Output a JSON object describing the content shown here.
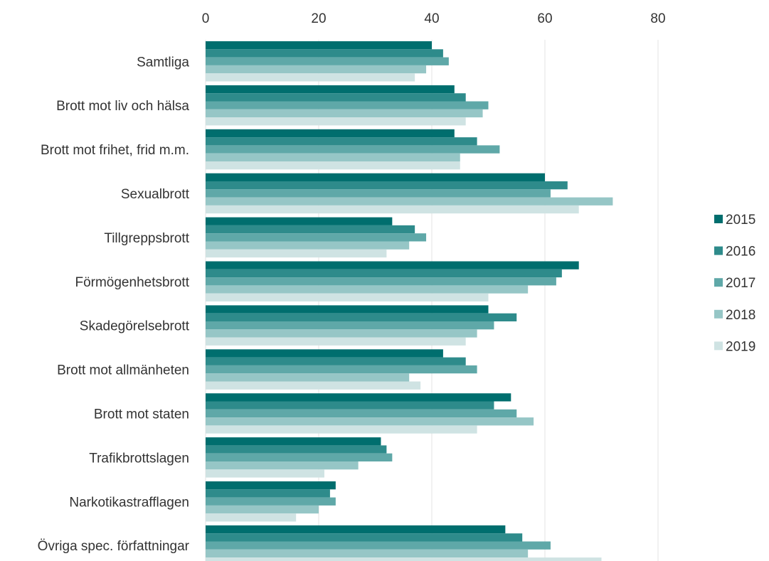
{
  "chart_data": {
    "type": "bar",
    "orientation": "horizontal",
    "categories": [
      "Samtliga",
      "Brott mot liv och hälsa",
      "Brott mot frihet, frid m.m.",
      "Sexualbrott",
      "Tillgreppsbrott",
      "Förmögenhetsbrott",
      "Skadegörelsebrott",
      "Brott mot allmänheten",
      "Brott mot staten",
      "Trafikbrottslagen",
      "Narkotikastrafflagen",
      "Övriga spec. författningar"
    ],
    "series": [
      {
        "name": "2015",
        "color": "#006e6e",
        "values": [
          40,
          44,
          44,
          60,
          33,
          66,
          50,
          42,
          54,
          31,
          23,
          53
        ]
      },
      {
        "name": "2016",
        "color": "#2e8b8b",
        "values": [
          42,
          46,
          48,
          64,
          37,
          63,
          55,
          46,
          51,
          32,
          22,
          56
        ]
      },
      {
        "name": "2017",
        "color": "#5fa8a8",
        "values": [
          43,
          50,
          52,
          61,
          39,
          62,
          51,
          48,
          55,
          33,
          23,
          61
        ]
      },
      {
        "name": "2018",
        "color": "#96c6c6",
        "values": [
          39,
          49,
          45,
          72,
          36,
          57,
          48,
          36,
          58,
          27,
          20,
          57
        ]
      },
      {
        "name": "2019",
        "color": "#cfe3e3",
        "values": [
          37,
          46,
          45,
          66,
          32,
          50,
          46,
          38,
          48,
          21,
          16,
          70
        ]
      }
    ],
    "xlim": [
      0,
      80
    ],
    "xticks": [
      "0",
      "20",
      "40",
      "60",
      "80"
    ],
    "x_axis_position": "top",
    "grid": true,
    "legend_position": "right"
  }
}
